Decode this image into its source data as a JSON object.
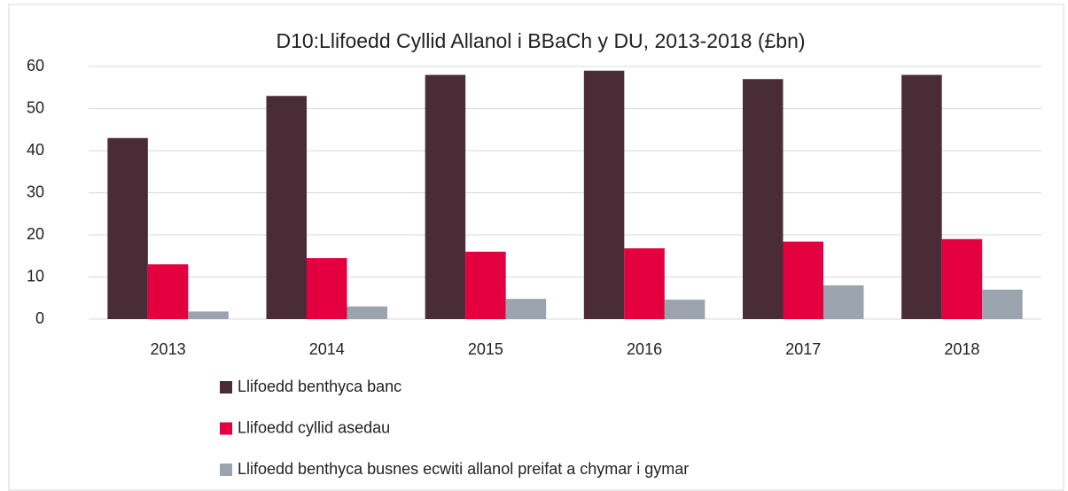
{
  "chart_data": {
    "type": "bar",
    "title": "D10:Llifoedd Cyllid Allanol i BBaCh y DU, 2013-2018 (£bn)",
    "categories": [
      "2013",
      "2014",
      "2015",
      "2016",
      "2017",
      "2018"
    ],
    "series": [
      {
        "name": "Llifoedd benthyca banc",
        "color": "#4a2c36",
        "values": [
          43,
          53,
          58,
          59,
          57,
          58
        ]
      },
      {
        "name": "Llifoedd cyllid asedau",
        "color": "#e4003f",
        "values": [
          13,
          14.5,
          16,
          16.8,
          18.4,
          19
        ]
      },
      {
        "name": "Llifoedd benthyca busnes ecwiti allanol preifat a chymar i gymar",
        "color": "#9aa3ae",
        "values": [
          1.8,
          3,
          4.8,
          4.6,
          8,
          7
        ]
      }
    ],
    "ylim": [
      0,
      60
    ],
    "yticks": [
      0,
      10,
      20,
      30,
      40,
      50,
      60
    ],
    "grid": true,
    "legend": "bottom"
  }
}
